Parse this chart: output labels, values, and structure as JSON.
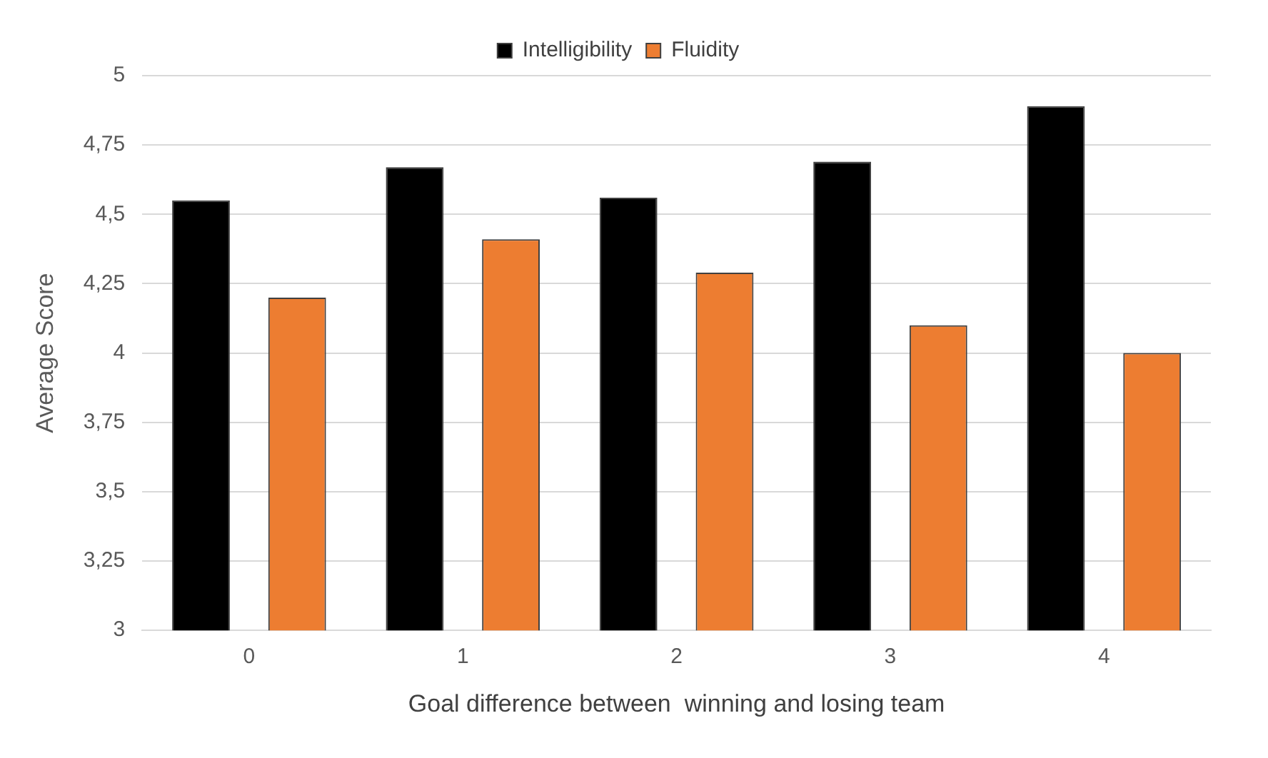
{
  "chart_data": {
    "type": "bar",
    "xlabel": "Goal difference between  winning and losing team",
    "ylabel": "Average Score",
    "categories": [
      "0",
      "1",
      "2",
      "3",
      "4"
    ],
    "series": [
      {
        "name": "Intelligibility",
        "color": "#000000",
        "values": [
          4.55,
          4.67,
          4.56,
          4.69,
          4.89
        ]
      },
      {
        "name": "Fluidity",
        "color": "#ed7d31",
        "values": [
          4.2,
          4.41,
          4.29,
          4.1,
          4.0
        ]
      }
    ],
    "ylim": [
      3,
      5
    ],
    "yticks": [
      3,
      {
        "value": 3.25,
        "label": "3,25"
      },
      {
        "value": 3.5,
        "label": "3,5"
      },
      {
        "value": 3.75,
        "label": "3,75"
      },
      4,
      {
        "value": 4.25,
        "label": "4,25"
      },
      {
        "value": 4.5,
        "label": "4,5"
      },
      {
        "value": 4.75,
        "label": "4,75"
      },
      5
    ],
    "grid": "y",
    "legend": "top"
  }
}
